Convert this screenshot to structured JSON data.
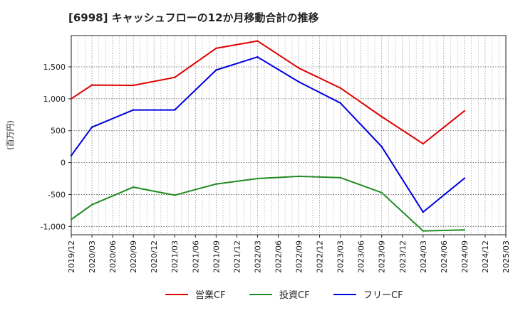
{
  "chart_data": {
    "type": "line",
    "title": "[6998]  キャッシュフローの12か月移動合計の推移",
    "ylabel": "(百万円)",
    "xlabel": "",
    "ylim": [
      -1130,
      1990
    ],
    "yticks": [
      -1000,
      -500,
      0,
      500,
      1000,
      1500
    ],
    "ytick_labels": [
      "-1,000",
      "-500",
      "0",
      "500",
      "1,000",
      "1,500"
    ],
    "x_range": [
      "2019/12",
      "2025/03"
    ],
    "xtick_labels": [
      "2019/12",
      "2020/03",
      "2020/06",
      "2020/09",
      "2020/12",
      "2021/03",
      "2021/06",
      "2021/09",
      "2021/12",
      "2022/03",
      "2022/06",
      "2022/09",
      "2022/12",
      "2023/03",
      "2023/06",
      "2023/09",
      "2023/12",
      "2024/03",
      "2024/06",
      "2024/09",
      "2024/12",
      "2025/03"
    ],
    "grid": true,
    "legend_position": "bottom",
    "series": [
      {
        "name": "営業CF",
        "color": "#e00000",
        "x": [
          "2019/12",
          "2020/03",
          "2020/09",
          "2021/03",
          "2021/09",
          "2022/03",
          "2022/09",
          "2023/03",
          "2023/09",
          "2024/03",
          "2024/09"
        ],
        "values": [
          1000,
          1215,
          1210,
          1335,
          1790,
          1905,
          1480,
          1170,
          720,
          295,
          810
        ]
      },
      {
        "name": "投資CF",
        "color": "#228b22",
        "x": [
          "2019/12",
          "2020/03",
          "2020/09",
          "2021/03",
          "2021/09",
          "2022/03",
          "2022/09",
          "2023/03",
          "2023/09",
          "2024/03",
          "2024/09"
        ],
        "values": [
          -890,
          -660,
          -385,
          -510,
          -335,
          -250,
          -215,
          -235,
          -470,
          -1070,
          -1055
        ]
      },
      {
        "name": "フリーCF",
        "color": "#0000e0",
        "x": [
          "2019/12",
          "2020/03",
          "2020/09",
          "2021/03",
          "2021/09",
          "2022/03",
          "2022/09",
          "2023/03",
          "2023/09",
          "2024/03",
          "2024/09"
        ],
        "values": [
          110,
          555,
          825,
          825,
          1450,
          1655,
          1265,
          935,
          250,
          -775,
          -245
        ]
      }
    ]
  }
}
